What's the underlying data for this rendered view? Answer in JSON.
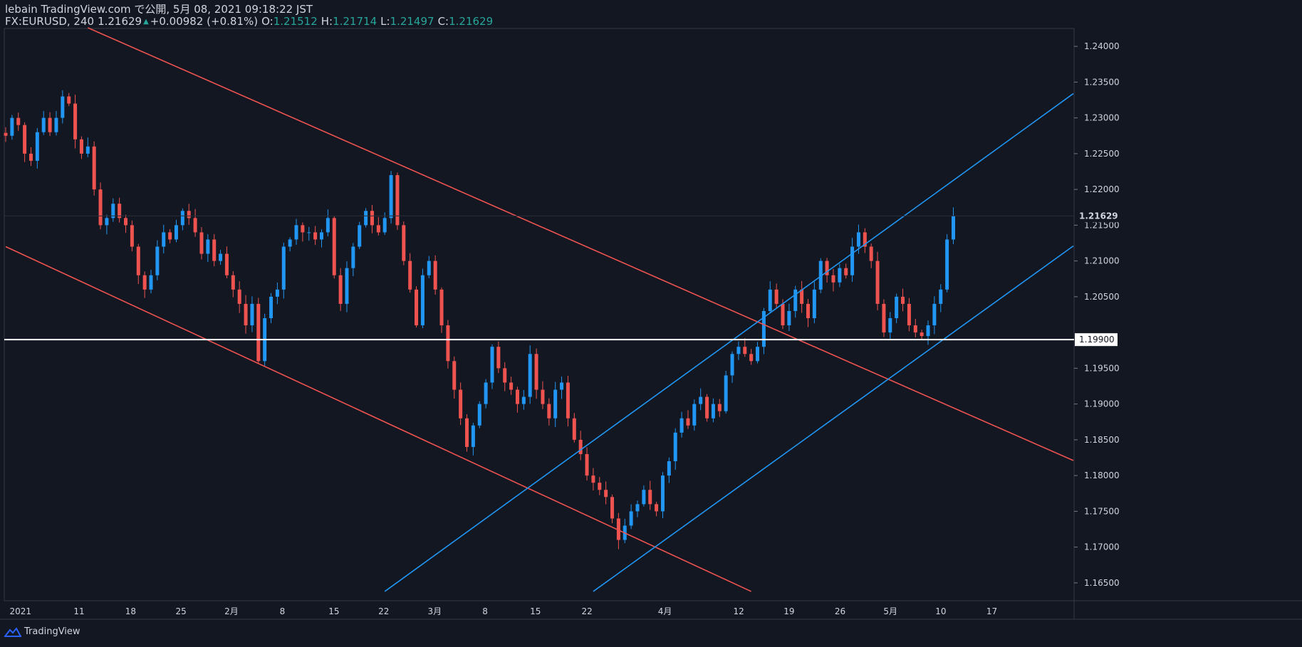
{
  "header": {
    "title": "lebain TradingView.com で公開, 5月 08, 2021 09:18:22 JST",
    "symbol": "FX:EURUSD, 240",
    "last": "1.21629",
    "change": "+0.00982 (+0.81%)",
    "o_label": "O:",
    "o_value": "1.21512",
    "h_label": "H:",
    "h_value": "1.21714",
    "l_label": "L:",
    "l_value": "1.21497",
    "c_label": "C:",
    "c_value": "1.21629"
  },
  "footer": {
    "brand": "TradingView"
  },
  "colors": {
    "background": "#131722",
    "up": "#2196f3",
    "down": "#ef5350",
    "channel_down": "#ef5350",
    "channel_up": "#2196f3",
    "support": "#ffffff",
    "text": "#d1d4dc",
    "accent": "#26a69a"
  },
  "chart_data": {
    "type": "candlestick",
    "symbol": "EURUSD",
    "timeframe": "240",
    "ylim": [
      1.1625,
      1.2425
    ],
    "y_ticks": [
      "1.24000",
      "1.23500",
      "1.23000",
      "1.22500",
      "1.22000",
      "1.21500",
      "1.21000",
      "1.20500",
      "1.20000",
      "1.19500",
      "1.19000",
      "1.18500",
      "1.18000",
      "1.17500",
      "1.17000",
      "1.16500"
    ],
    "x_ticks": [
      "2021",
      "11",
      "18",
      "25",
      "2月",
      "8",
      "15",
      "22",
      "3月",
      "8",
      "15",
      "22",
      "4月",
      "12",
      "19",
      "26",
      "5月",
      "10",
      "17"
    ],
    "last_price_label": "1.21629",
    "horizontal_line": {
      "price": 1.199,
      "label": "1.19900"
    },
    "close_path": [
      [
        0,
        1.2275
      ],
      [
        1,
        1.23
      ],
      [
        2,
        1.229
      ],
      [
        3,
        1.225
      ],
      [
        4,
        1.224
      ],
      [
        5,
        1.228
      ],
      [
        6,
        1.23
      ],
      [
        7,
        1.228
      ],
      [
        8,
        1.23
      ],
      [
        9,
        1.233
      ],
      [
        10,
        1.232
      ],
      [
        11,
        1.227
      ],
      [
        12,
        1.225
      ],
      [
        13,
        1.226
      ],
      [
        14,
        1.22
      ],
      [
        15,
        1.215
      ],
      [
        16,
        1.216
      ],
      [
        17,
        1.218
      ],
      [
        18,
        1.216
      ],
      [
        19,
        1.215
      ],
      [
        20,
        1.212
      ],
      [
        21,
        1.208
      ],
      [
        22,
        1.206
      ],
      [
        23,
        1.208
      ],
      [
        24,
        1.212
      ],
      [
        25,
        1.214
      ],
      [
        26,
        1.213
      ],
      [
        27,
        1.215
      ],
      [
        28,
        1.217
      ],
      [
        29,
        1.216
      ],
      [
        30,
        1.214
      ],
      [
        31,
        1.211
      ],
      [
        32,
        1.213
      ],
      [
        33,
        1.21
      ],
      [
        34,
        1.211
      ],
      [
        35,
        1.208
      ],
      [
        36,
        1.206
      ],
      [
        37,
        1.204
      ],
      [
        38,
        1.201
      ],
      [
        39,
        1.204
      ],
      [
        40,
        1.196
      ],
      [
        41,
        1.202
      ],
      [
        42,
        1.205
      ],
      [
        43,
        1.206
      ],
      [
        44,
        1.212
      ],
      [
        45,
        1.213
      ],
      [
        46,
        1.215
      ],
      [
        47,
        1.214
      ],
      [
        48,
        1.214
      ],
      [
        49,
        1.213
      ],
      [
        50,
        1.214
      ],
      [
        51,
        1.216
      ],
      [
        52,
        1.208
      ],
      [
        53,
        1.204
      ],
      [
        54,
        1.209
      ],
      [
        55,
        1.212
      ],
      [
        56,
        1.215
      ],
      [
        57,
        1.217
      ],
      [
        58,
        1.215
      ],
      [
        59,
        1.214
      ],
      [
        60,
        1.216
      ],
      [
        61,
        1.222
      ],
      [
        62,
        1.215
      ],
      [
        63,
        1.21
      ],
      [
        64,
        1.206
      ],
      [
        65,
        1.201
      ],
      [
        66,
        1.208
      ],
      [
        67,
        1.21
      ],
      [
        68,
        1.206
      ],
      [
        69,
        1.201
      ],
      [
        70,
        1.196
      ],
      [
        71,
        1.192
      ],
      [
        72,
        1.188
      ],
      [
        73,
        1.184
      ],
      [
        74,
        1.187
      ],
      [
        75,
        1.19
      ],
      [
        76,
        1.193
      ],
      [
        77,
        1.198
      ],
      [
        78,
        1.195
      ],
      [
        79,
        1.193
      ],
      [
        80,
        1.192
      ],
      [
        81,
        1.19
      ],
      [
        82,
        1.191
      ],
      [
        83,
        1.197
      ],
      [
        84,
        1.192
      ],
      [
        85,
        1.19
      ],
      [
        86,
        1.188
      ],
      [
        87,
        1.192
      ],
      [
        88,
        1.193
      ],
      [
        89,
        1.188
      ],
      [
        90,
        1.185
      ],
      [
        91,
        1.183
      ],
      [
        92,
        1.18
      ],
      [
        93,
        1.179
      ],
      [
        94,
        1.178
      ],
      [
        95,
        1.177
      ],
      [
        96,
        1.174
      ],
      [
        97,
        1.171
      ],
      [
        98,
        1.173
      ],
      [
        99,
        1.175
      ],
      [
        100,
        1.176
      ],
      [
        101,
        1.178
      ],
      [
        102,
        1.176
      ],
      [
        103,
        1.175
      ],
      [
        104,
        1.18
      ],
      [
        105,
        1.182
      ],
      [
        106,
        1.186
      ],
      [
        107,
        1.188
      ],
      [
        108,
        1.187
      ],
      [
        109,
        1.19
      ],
      [
        110,
        1.191
      ],
      [
        111,
        1.188
      ],
      [
        112,
        1.19
      ],
      [
        113,
        1.189
      ],
      [
        114,
        1.194
      ],
      [
        115,
        1.197
      ],
      [
        116,
        1.198
      ],
      [
        117,
        1.197
      ],
      [
        118,
        1.196
      ],
      [
        119,
        1.198
      ],
      [
        120,
        1.203
      ],
      [
        121,
        1.206
      ],
      [
        122,
        1.204
      ],
      [
        123,
        1.201
      ],
      [
        124,
        1.203
      ],
      [
        125,
        1.206
      ],
      [
        126,
        1.204
      ],
      [
        127,
        1.202
      ],
      [
        128,
        1.206
      ],
      [
        129,
        1.21
      ],
      [
        130,
        1.208
      ],
      [
        131,
        1.207
      ],
      [
        132,
        1.209
      ],
      [
        133,
        1.208
      ],
      [
        134,
        1.212
      ],
      [
        135,
        1.214
      ],
      [
        136,
        1.212
      ],
      [
        137,
        1.21
      ],
      [
        138,
        1.204
      ],
      [
        139,
        1.2
      ],
      [
        140,
        1.202
      ],
      [
        141,
        1.205
      ],
      [
        142,
        1.204
      ],
      [
        143,
        1.201
      ],
      [
        144,
        1.2
      ],
      [
        145,
        1.1995
      ],
      [
        146,
        1.201
      ],
      [
        147,
        1.204
      ],
      [
        148,
        1.206
      ],
      [
        149,
        1.213
      ],
      [
        150,
        1.2163
      ]
    ],
    "trendlines": [
      {
        "name": "",
        "role": "descending-channel-top",
        "from": {
          "bar": 13,
          "price": 1.2426
        },
        "to": {
          "bar": 169,
          "price": 1.1821
        },
        "color": "#ef5350"
      },
      {
        "name": "",
        "role": "descending-channel-bottom",
        "from": {
          "bar": 0,
          "price": 1.212
        },
        "to": {
          "bar": 118,
          "price": 1.1638
        },
        "color": "#ef5350"
      },
      {
        "name": "",
        "role": "ascending-channel-top",
        "from": {
          "bar": 60,
          "price": 1.1638
        },
        "to": {
          "bar": 169,
          "price": 1.2334
        },
        "color": "#2196f3"
      },
      {
        "name": "",
        "role": "ascending-channel-bottom",
        "from": {
          "bar": 93,
          "price": 1.1638
        },
        "to": {
          "bar": 169,
          "price": 1.2121
        },
        "color": "#2196f3"
      }
    ]
  }
}
